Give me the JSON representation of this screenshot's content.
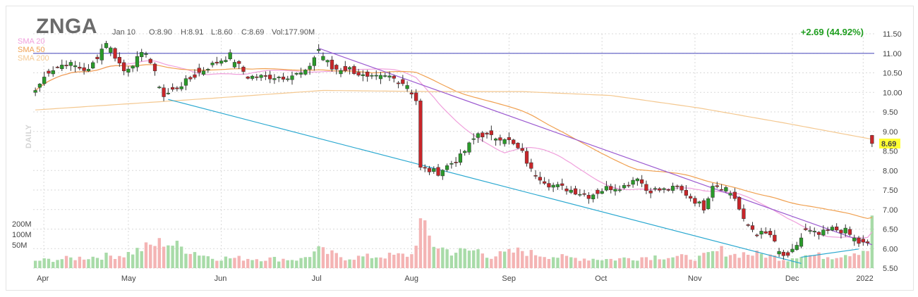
{
  "header": {
    "ticker": "ZNGA",
    "date": "Jan 10",
    "open": "O:8.90",
    "high": "H:8.91",
    "low": "L:8.60",
    "close": "C:8.69",
    "volume": "Vol:177.90M",
    "change": "+2.69 (44.92%)"
  },
  "legend": [
    {
      "label": "SMA 20",
      "color": "#f0a0dc"
    },
    {
      "label": "SMA 50",
      "color": "#f0a050"
    },
    {
      "label": "SMA 200",
      "color": "#f4c890"
    }
  ],
  "side_label": "DAILY",
  "colors": {
    "up": "#2a9a2a",
    "down": "#c8262a",
    "up_volume": "#a8dba8",
    "down_volume": "#f4b4b4",
    "resistance_line": "#9b59d0",
    "support_line": "#2aa8d0",
    "horizontal_line": "#6a6ac8",
    "last_price_box": "#ffff33",
    "grid": "#d9d9d9"
  },
  "chart_data": {
    "type": "candlestick",
    "yticks": [
      "11.50",
      "11.00",
      "10.50",
      "10.00",
      "9.50",
      "9.00",
      "8.50",
      "8.00",
      "7.50",
      "7.00",
      "6.50",
      "6.00",
      "5.50"
    ],
    "ylim": [
      5.5,
      11.5
    ],
    "xticks": [
      "Apr",
      "May",
      "Jun",
      "Jul",
      "Aug",
      "Sep",
      "Oct",
      "Nov",
      "Dec",
      "2022"
    ],
    "volume_ticks": [
      "200M",
      "100M",
      "50M"
    ],
    "last_price_label": "8.69",
    "horizontal_level": 11.0,
    "trendlines": [
      {
        "name": "resistance",
        "from": [
          64,
          11.13
        ],
        "to": [
          189,
          6.1
        ]
      },
      {
        "name": "support",
        "from": [
          30,
          9.82
        ],
        "to": [
          173,
          5.62
        ]
      },
      {
        "name": "support-short",
        "from": [
          173,
          5.78
        ],
        "to": [
          186,
          5.99
        ]
      }
    ],
    "anchors": [
      [
        0,
        10.05
      ],
      [
        3,
        10.55
      ],
      [
        7,
        10.75
      ],
      [
        12,
        10.55
      ],
      [
        16,
        11.3
      ],
      [
        20,
        10.55
      ],
      [
        25,
        11.05
      ],
      [
        29,
        9.9
      ],
      [
        35,
        10.35
      ],
      [
        39,
        10.65
      ],
      [
        44,
        10.95
      ],
      [
        48,
        10.4
      ],
      [
        52,
        10.4
      ],
      [
        56,
        10.4
      ],
      [
        61,
        10.5
      ],
      [
        64,
        11.1
      ],
      [
        67,
        10.6
      ],
      [
        71,
        10.6
      ],
      [
        75,
        10.35
      ],
      [
        80,
        10.4
      ],
      [
        84,
        10.2
      ],
      [
        86,
        9.8
      ],
      [
        87,
        8.05
      ],
      [
        91,
        7.95
      ],
      [
        96,
        8.35
      ],
      [
        100,
        8.95
      ],
      [
        103,
        8.85
      ],
      [
        106,
        8.85
      ],
      [
        110,
        8.45
      ],
      [
        112,
        8.0
      ],
      [
        116,
        7.65
      ],
      [
        121,
        7.5
      ],
      [
        125,
        7.35
      ],
      [
        129,
        7.55
      ],
      [
        133,
        7.6
      ],
      [
        136,
        7.85
      ],
      [
        138,
        7.5
      ],
      [
        142,
        7.5
      ],
      [
        145,
        7.55
      ],
      [
        147,
        7.4
      ],
      [
        151,
        7.05
      ],
      [
        153,
        7.65
      ],
      [
        156,
        7.55
      ],
      [
        158,
        7.3
      ],
      [
        160,
        6.7
      ],
      [
        163,
        6.4
      ],
      [
        166,
        6.35
      ],
      [
        168,
        5.9
      ],
      [
        170,
        5.75
      ],
      [
        172,
        6.1
      ],
      [
        174,
        6.45
      ],
      [
        177,
        6.35
      ],
      [
        180,
        6.5
      ],
      [
        183,
        6.45
      ],
      [
        186,
        6.15
      ],
      [
        188,
        6.1
      ],
      [
        189,
        8.69
      ]
    ],
    "volume_anchors": [
      [
        0,
        25
      ],
      [
        20,
        45
      ],
      [
        29,
        90
      ],
      [
        40,
        35
      ],
      [
        60,
        30
      ],
      [
        64,
        60
      ],
      [
        70,
        35
      ],
      [
        85,
        45
      ],
      [
        87,
        150
      ],
      [
        90,
        80
      ],
      [
        94,
        55
      ],
      [
        100,
        60
      ],
      [
        103,
        40
      ],
      [
        110,
        60
      ],
      [
        112,
        50
      ],
      [
        120,
        35
      ],
      [
        130,
        30
      ],
      [
        140,
        40
      ],
      [
        150,
        35
      ],
      [
        155,
        60
      ],
      [
        158,
        45
      ],
      [
        160,
        50
      ],
      [
        165,
        45
      ],
      [
        168,
        35
      ],
      [
        170,
        30
      ],
      [
        172,
        45
      ],
      [
        180,
        40
      ],
      [
        188,
        65
      ],
      [
        189,
        177.9
      ]
    ],
    "sessions": 190,
    "sma_periods": [
      20,
      50,
      200
    ],
    "sma200_anchors": [
      [
        0,
        9.55
      ],
      [
        40,
        9.85
      ],
      [
        65,
        10.05
      ],
      [
        90,
        10.02
      ],
      [
        110,
        10.02
      ],
      [
        130,
        9.92
      ],
      [
        150,
        9.6
      ],
      [
        170,
        9.2
      ],
      [
        189,
        8.8
      ]
    ]
  }
}
